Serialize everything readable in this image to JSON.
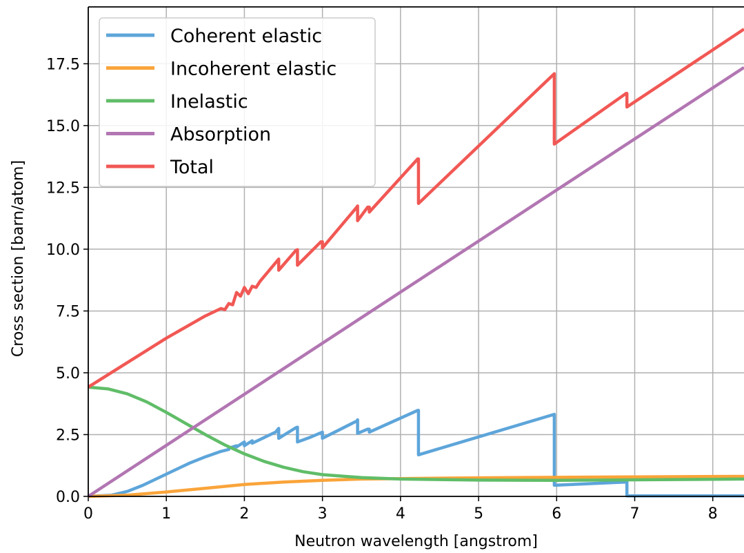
{
  "chart_data": {
    "type": "line",
    "title": "",
    "xlabel": "Neutron wavelength [angstrom]",
    "ylabel": "Cross section [barn/atom]",
    "xlim": [
      0,
      8.4
    ],
    "ylim": [
      0,
      19.8
    ],
    "xticks": [
      0,
      1,
      2,
      3,
      4,
      5,
      6,
      7,
      8
    ],
    "xtick_labels": [
      "0",
      "1",
      "2",
      "3",
      "4",
      "5",
      "6",
      "7",
      "8"
    ],
    "yticks": [
      0,
      2.5,
      5,
      7.5,
      10,
      12.5,
      15,
      17.5
    ],
    "ytick_labels": [
      "0.0",
      "2.5",
      "5.0",
      "7.5",
      "10.0",
      "12.5",
      "15.0",
      "17.5"
    ],
    "grid": true,
    "legend_position": "top-left",
    "series": [
      {
        "name": "Coherent elastic",
        "color": "#5da5da",
        "x": [
          0,
          0.3,
          0.5,
          0.7,
          0.9,
          1.1,
          1.3,
          1.5,
          1.7,
          1.8,
          1.8,
          1.9,
          1.9,
          2.0,
          2.0,
          2.1,
          2.1,
          2.2,
          2.4,
          2.44,
          2.44,
          2.66,
          2.68,
          2.68,
          2.85,
          3.0,
          3.0,
          3.44,
          3.45,
          3.45,
          3.58,
          3.6,
          3.6,
          4.22,
          4.23,
          4.23,
          5.97,
          5.97,
          6.89,
          6.9,
          6.9,
          8.4
        ],
        "y": [
          0,
          0.05,
          0.2,
          0.45,
          0.75,
          1.05,
          1.35,
          1.6,
          1.82,
          1.9,
          1.95,
          2.05,
          2.0,
          2.2,
          2.05,
          2.25,
          2.15,
          2.3,
          2.6,
          2.75,
          2.35,
          2.78,
          2.8,
          2.2,
          2.4,
          2.6,
          2.35,
          3.05,
          3.1,
          2.55,
          2.72,
          2.72,
          2.6,
          3.48,
          3.48,
          1.68,
          3.32,
          0.45,
          0.58,
          0.58,
          0.02,
          0.02
        ]
      },
      {
        "name": "Incoherent elastic",
        "color": "#faa43a",
        "x": [
          0,
          0.5,
          1,
          1.5,
          2,
          2.5,
          3,
          3.5,
          4,
          5,
          6,
          7,
          8.4
        ],
        "y": [
          0,
          0.05,
          0.18,
          0.33,
          0.48,
          0.58,
          0.65,
          0.7,
          0.72,
          0.75,
          0.77,
          0.79,
          0.81
        ]
      },
      {
        "name": "Inelastic",
        "color": "#60bd68",
        "x": [
          0,
          0.25,
          0.5,
          0.75,
          1,
          1.25,
          1.5,
          1.75,
          2,
          2.25,
          2.5,
          2.75,
          3,
          3.5,
          4,
          5,
          6,
          7,
          8.4
        ],
        "y": [
          4.42,
          4.35,
          4.15,
          3.82,
          3.4,
          2.95,
          2.5,
          2.08,
          1.72,
          1.42,
          1.18,
          1.0,
          0.88,
          0.76,
          0.7,
          0.66,
          0.65,
          0.67,
          0.7
        ]
      },
      {
        "name": "Absorption",
        "color": "#b276b2",
        "x": [
          0,
          8.4
        ],
        "y": [
          0,
          17.35
        ]
      },
      {
        "name": "Total",
        "color": "#f15854",
        "x": [
          0,
          1,
          1.5,
          1.7,
          1.75,
          1.8,
          1.85,
          1.9,
          1.95,
          2.0,
          2.05,
          2.1,
          2.15,
          2.2,
          2.44,
          2.44,
          2.66,
          2.68,
          2.68,
          2.98,
          3.0,
          3.0,
          3.44,
          3.45,
          3.45,
          3.58,
          3.6,
          3.6,
          4.22,
          4.23,
          4.23,
          5.97,
          5.97,
          6.89,
          6.9,
          6.9,
          8.4
        ],
        "y": [
          4.42,
          6.4,
          7.3,
          7.6,
          7.55,
          7.8,
          7.75,
          8.25,
          8.1,
          8.45,
          8.2,
          8.5,
          8.45,
          8.7,
          9.6,
          9.15,
          9.95,
          9.98,
          9.35,
          10.3,
          10.3,
          10.05,
          11.7,
          11.75,
          11.15,
          11.7,
          11.7,
          11.5,
          13.65,
          13.65,
          11.85,
          17.1,
          14.25,
          16.3,
          16.3,
          15.75,
          18.9
        ]
      }
    ]
  }
}
